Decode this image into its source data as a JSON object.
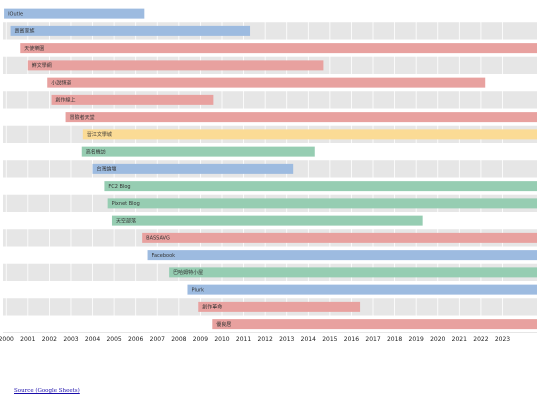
{
  "chart_data": {
    "type": "timeline",
    "colors": {
      "blue": "#9dbbe0",
      "red": "#e8a19f",
      "green": "#96cdb2",
      "yellow": "#fbdb95",
      "row_alt": "#e6e6e6",
      "row_plain": "#ffffff"
    },
    "x_ticks": [
      "2000",
      "2001",
      "2002",
      "2003",
      "2004",
      "2005",
      "2006",
      "2007",
      "2008",
      "2009",
      "2010",
      "2011",
      "2012",
      "2013",
      "2014",
      "2015",
      "2016",
      "2017",
      "2018",
      "2019",
      "2020",
      "2021",
      "2022",
      "2023"
    ],
    "xlim": [
      1999.85,
      2024.6
    ],
    "rows": [
      {
        "label": "IOutle",
        "start": 1999.9,
        "end": 2006.4,
        "color": "blue"
      },
      {
        "label": "貴賓家族",
        "start": 2000.2,
        "end": 2011.3,
        "color": "blue"
      },
      {
        "label": "天使樂園",
        "start": 2000.65,
        "end": 2024.6,
        "color": "red"
      },
      {
        "label": "鮮文學網",
        "start": 2001.0,
        "end": 2014.7,
        "color": "red"
      },
      {
        "label": "小說頻道",
        "start": 2001.9,
        "end": 2022.2,
        "color": "red"
      },
      {
        "label": "創作線上",
        "start": 2002.1,
        "end": 2009.6,
        "color": "red"
      },
      {
        "label": "冒險者天堂",
        "start": 2002.75,
        "end": 2024.6,
        "color": "red"
      },
      {
        "label": "晉江文學城",
        "start": 2003.55,
        "end": 2024.6,
        "color": "yellow"
      },
      {
        "label": "高名機訪",
        "start": 2003.5,
        "end": 2014.3,
        "color": "green"
      },
      {
        "label": "台灣論壇",
        "start": 2004.0,
        "end": 2013.3,
        "color": "blue"
      },
      {
        "label": "FC2 Blog",
        "start": 2004.55,
        "end": 2024.6,
        "color": "green"
      },
      {
        "label": "Pixnet Blog",
        "start": 2004.7,
        "end": 2024.6,
        "color": "green"
      },
      {
        "label": "天空部落",
        "start": 2004.9,
        "end": 2019.3,
        "color": "green"
      },
      {
        "label": "BASSAVG",
        "start": 2006.3,
        "end": 2024.6,
        "color": "red"
      },
      {
        "label": "Facebook",
        "start": 2006.55,
        "end": 2024.6,
        "color": "blue"
      },
      {
        "label": "巴哈姆特小屋",
        "start": 2007.55,
        "end": 2024.6,
        "color": "green"
      },
      {
        "label": "Plurk",
        "start": 2008.4,
        "end": 2024.6,
        "color": "blue"
      },
      {
        "label": "創作革命",
        "start": 2008.9,
        "end": 2016.4,
        "color": "red"
      },
      {
        "label": "優良居",
        "start": 2009.55,
        "end": 2024.6,
        "color": "red"
      }
    ]
  },
  "footer": {
    "source_label": "Source (Google Sheets)"
  }
}
